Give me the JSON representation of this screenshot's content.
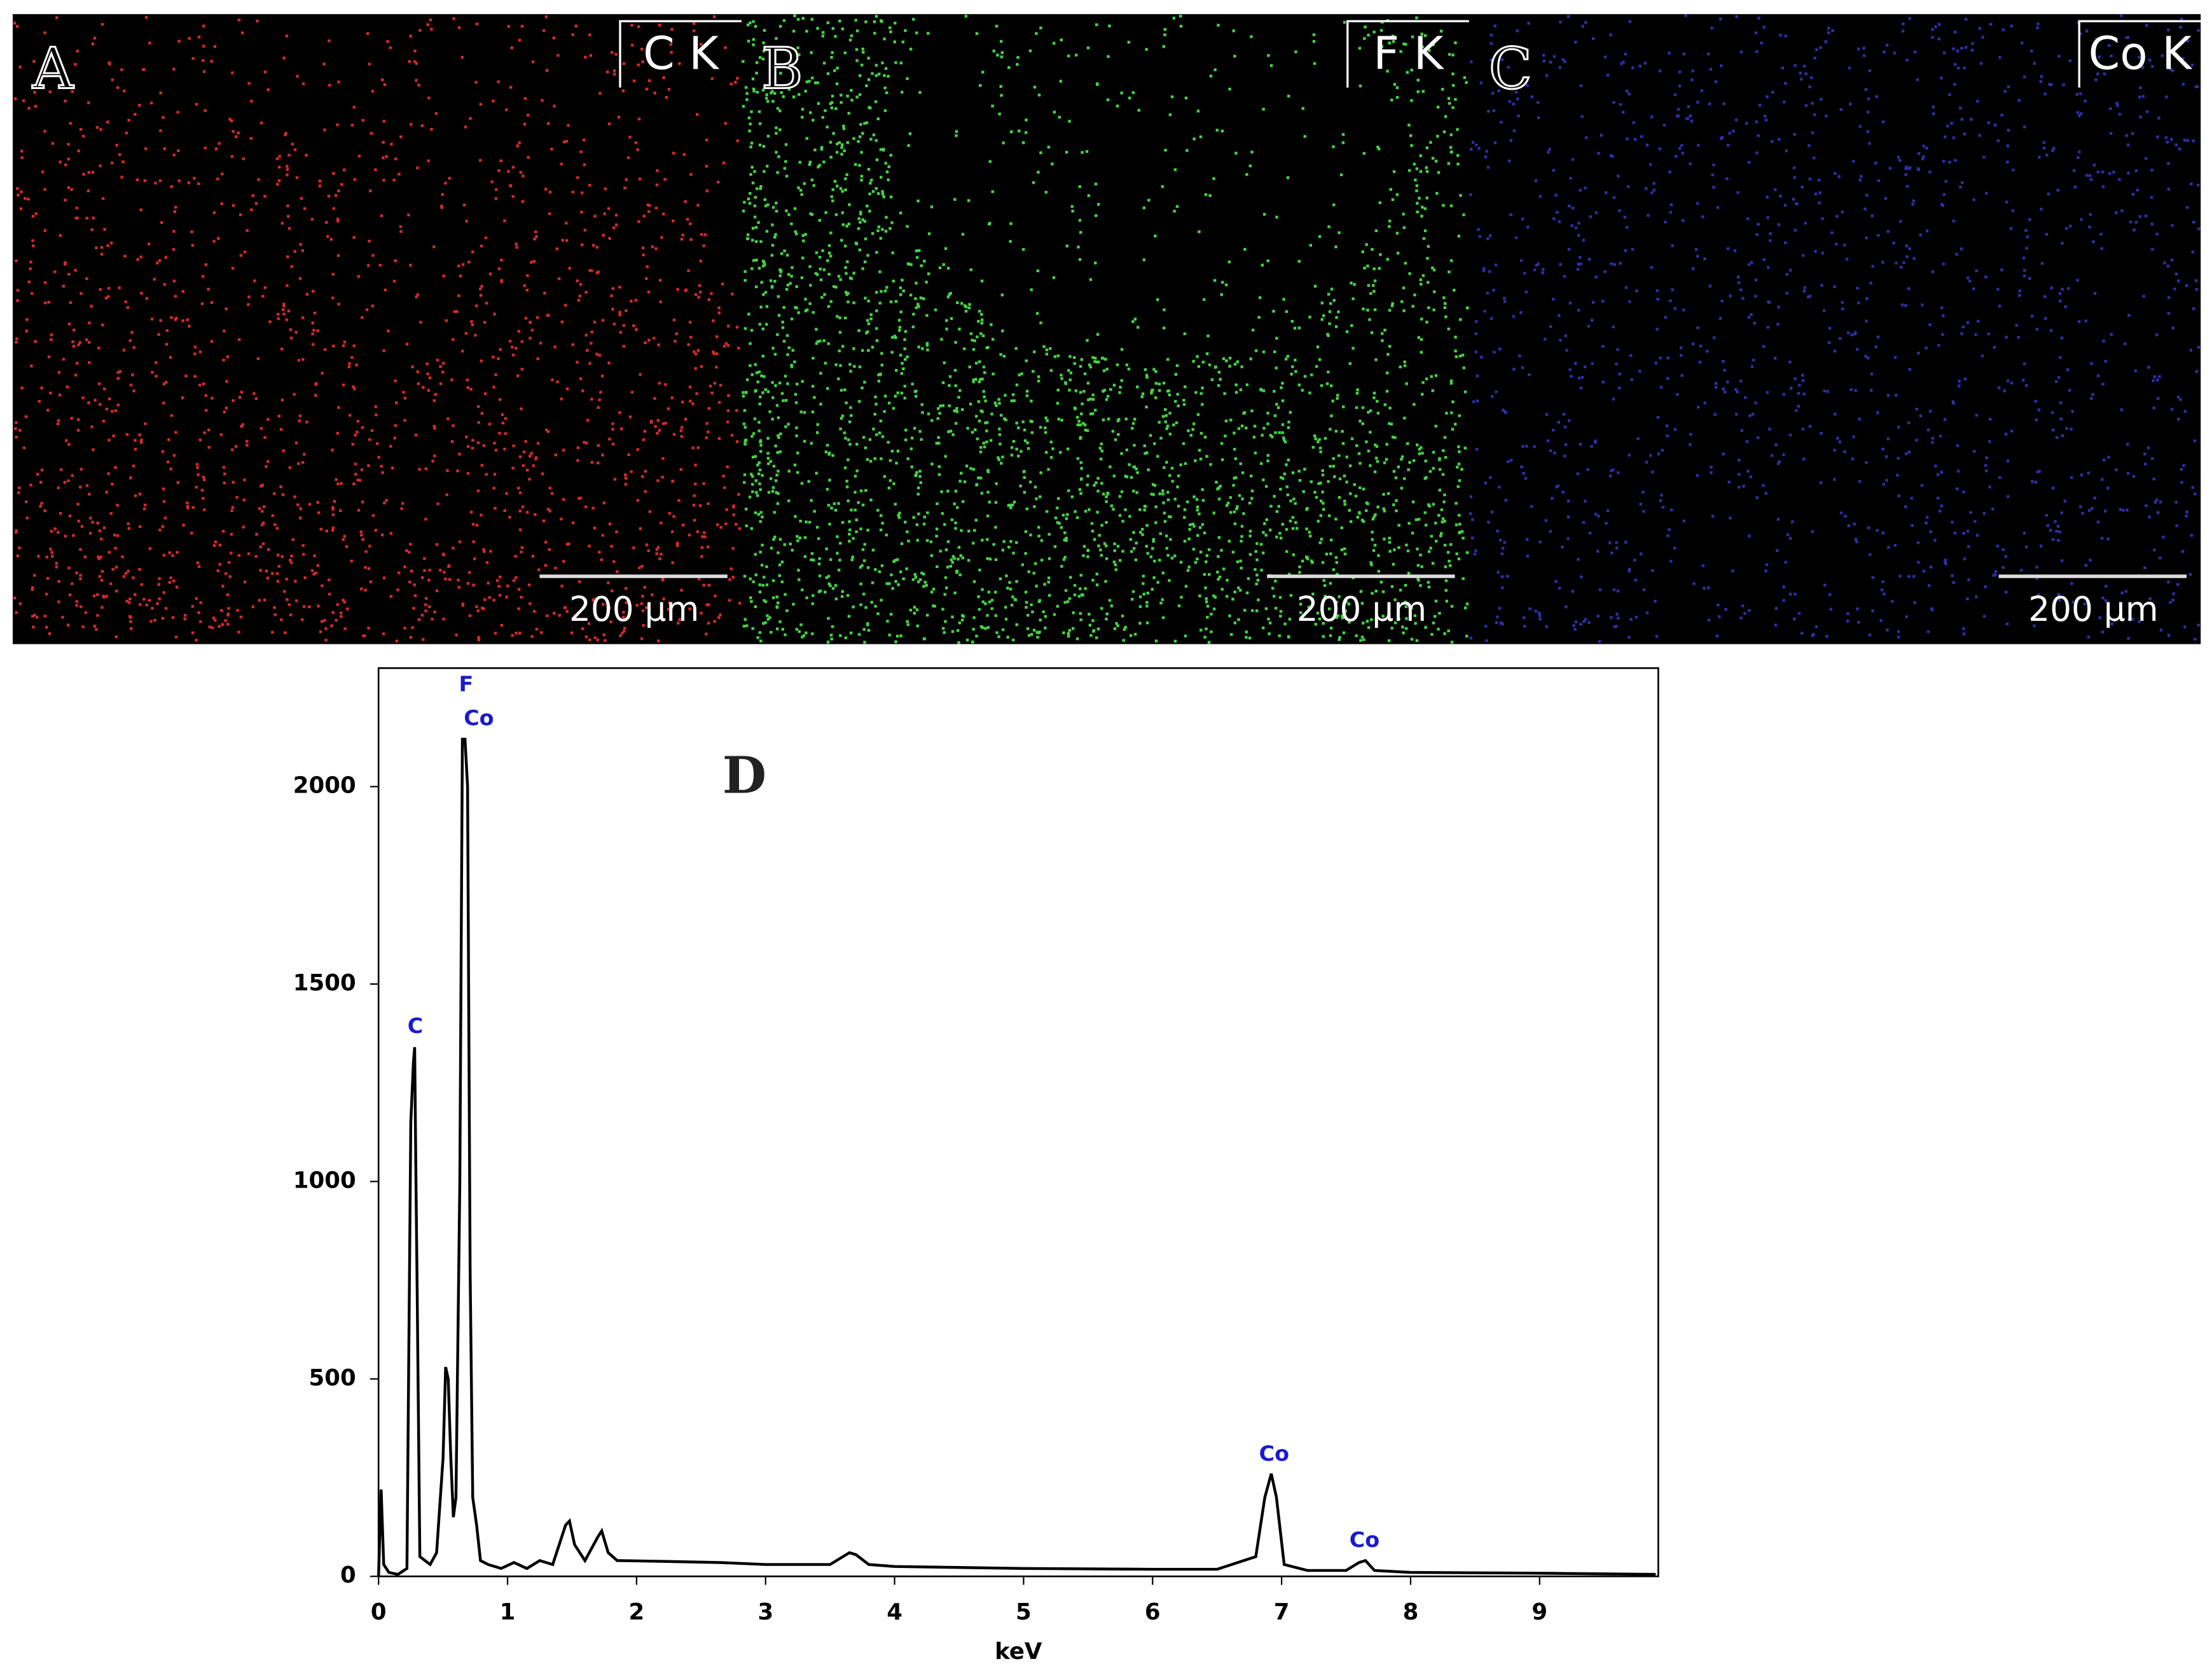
{
  "panels": [
    {
      "label": "A",
      "element": "C K",
      "scale": "200 µm"
    },
    {
      "label": "B",
      "element": "F K",
      "scale": "200 µm"
    },
    {
      "label": "C",
      "element": "Co K",
      "scale": "200 µm"
    }
  ],
  "chart_data": {
    "type": "line",
    "label": "D",
    "x_label": "keV",
    "color": "#000000",
    "x": [
      0,
      0.02,
      0.04,
      0.08,
      0.15,
      0.22,
      0.25,
      0.27,
      0.28,
      0.29,
      0.3,
      0.32,
      0.4,
      0.45,
      0.5,
      0.52,
      0.54,
      0.56,
      0.58,
      0.6,
      0.63,
      0.65,
      0.67,
      0.69,
      0.71,
      0.73,
      0.76,
      0.79,
      0.85,
      0.95,
      1.05,
      1.15,
      1.25,
      1.35,
      1.45,
      1.48,
      1.52,
      1.6,
      1.7,
      1.73,
      1.78,
      1.85,
      2.2,
      2.65,
      3.0,
      3.5,
      3.65,
      3.7,
      3.8,
      4.0,
      5.0,
      6.0,
      6.5,
      6.8,
      6.87,
      6.92,
      6.96,
      7.02,
      7.2,
      7.5,
      7.6,
      7.65,
      7.72,
      8.0,
      9.0,
      9.9
    ],
    "values": [
      0,
      220,
      30,
      10,
      5,
      20,
      1150,
      1300,
      1340,
      1000,
      700,
      50,
      30,
      60,
      300,
      530,
      500,
      300,
      150,
      200,
      1000,
      2120,
      2120,
      2000,
      770,
      200,
      130,
      40,
      30,
      20,
      35,
      20,
      40,
      30,
      130,
      140,
      80,
      40,
      100,
      115,
      60,
      40,
      38,
      35,
      30,
      30,
      60,
      55,
      30,
      25,
      20,
      18,
      18,
      50,
      200,
      260,
      200,
      30,
      15,
      15,
      35,
      40,
      15,
      10,
      8,
      5
    ],
    "xlim": [
      0,
      9.92
    ],
    "ylim": [
      0,
      2300
    ],
    "xticks": [
      0,
      1,
      2,
      3,
      4,
      5,
      6,
      7,
      8,
      9
    ],
    "yticks": [
      0,
      500,
      1000,
      1500,
      2000
    ],
    "annotations": [
      "F",
      "Co",
      "C",
      "Co",
      "Co"
    ]
  }
}
